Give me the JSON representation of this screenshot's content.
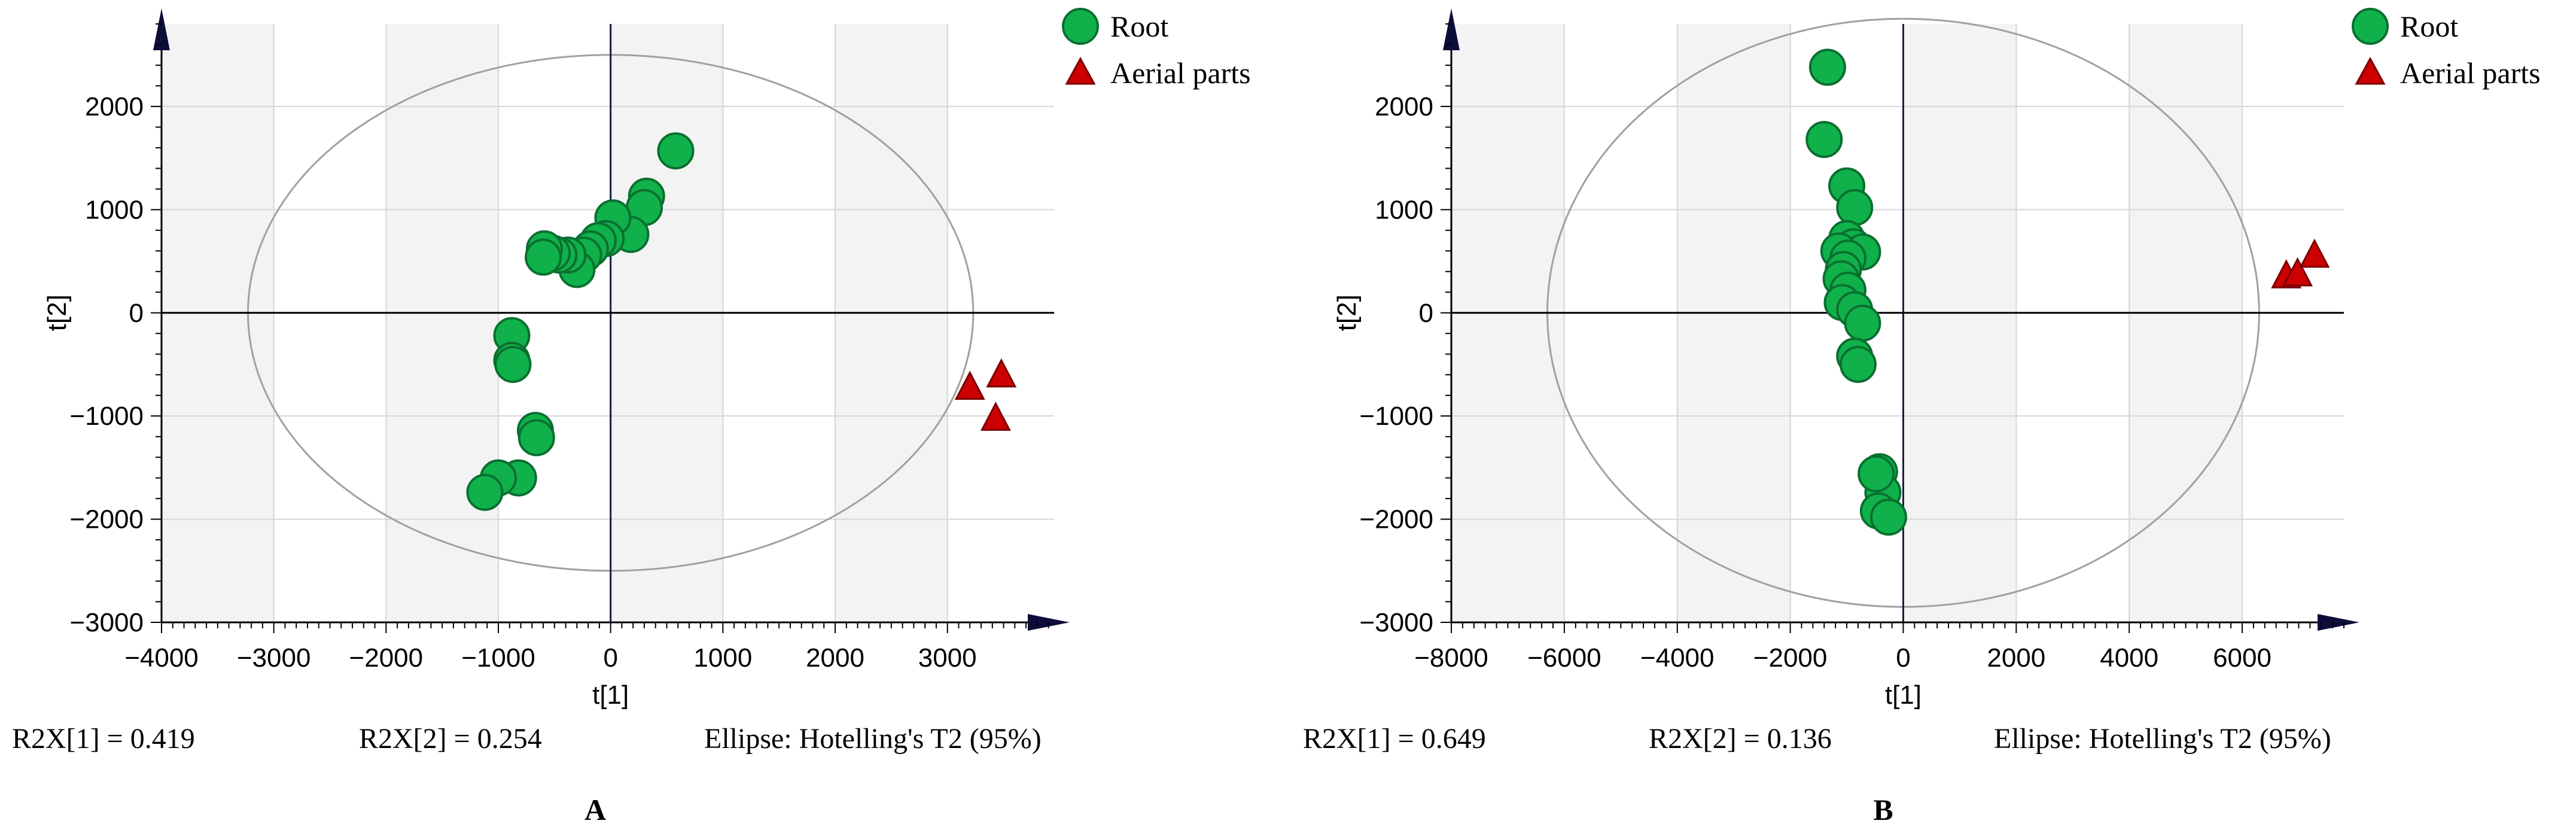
{
  "chart_data": [
    {
      "type": "scatter",
      "panel_label": "A",
      "xlabel": "t[1]",
      "ylabel": "t[2]",
      "xlim": [
        -4000,
        4000
      ],
      "ylim": [
        -3000,
        3000
      ],
      "xticks": [
        -4000,
        -3000,
        -2000,
        -1000,
        0,
        1000,
        2000,
        3000
      ],
      "yticks": [
        -3000,
        -2000,
        -1000,
        0,
        1000,
        2000
      ],
      "grid": true,
      "legend_position": "top-right, outside plot",
      "ellipse": {
        "label": "Ellipse: Hotelling's T2 (95%)",
        "rx": 3230,
        "ry": 2500,
        "color": "#a0a0a0"
      },
      "footer": {
        "r2x1": "R2X[1] = 0.419",
        "r2x2": "R2X[2] = 0.254",
        "ellipse_text": "Ellipse: Hotelling's T2 (95%)"
      },
      "series": [
        {
          "name": "Root",
          "marker": "circle",
          "color": "#10b14a",
          "edge": "#0a6f30",
          "points": [
            [
              580,
              1570
            ],
            [
              320,
              1130
            ],
            [
              300,
              1020
            ],
            [
              180,
              760
            ],
            [
              20,
              920
            ],
            [
              -40,
              720
            ],
            [
              -110,
              700
            ],
            [
              -180,
              620
            ],
            [
              -240,
              560
            ],
            [
              -300,
              420
            ],
            [
              -380,
              560
            ],
            [
              -460,
              560
            ],
            [
              -520,
              580
            ],
            [
              -590,
              620
            ],
            [
              -600,
              540
            ],
            [
              -880,
              -220
            ],
            [
              -880,
              -460
            ],
            [
              -870,
              -500
            ],
            [
              -670,
              -1140
            ],
            [
              -660,
              -1210
            ],
            [
              -820,
              -1600
            ],
            [
              -1000,
              -1600
            ],
            [
              -1120,
              -1740
            ]
          ]
        },
        {
          "name": "Aerial parts",
          "marker": "triangle",
          "color": "#cc0000",
          "edge": "#7a0000",
          "points": [
            [
              3200,
              -730
            ],
            [
              3480,
              -610
            ],
            [
              3430,
              -1030
            ]
          ]
        }
      ]
    },
    {
      "type": "scatter",
      "panel_label": "B",
      "xlabel": "t[1]",
      "ylabel": "t[2]",
      "xlim": [
        -8000,
        8000
      ],
      "ylim": [
        -3000,
        3000
      ],
      "xticks": [
        -8000,
        -6000,
        -4000,
        -2000,
        0,
        2000,
        4000,
        6000
      ],
      "yticks": [
        -3000,
        -2000,
        -1000,
        0,
        1000,
        2000
      ],
      "grid": true,
      "legend_position": "top-right, outside plot",
      "ellipse": {
        "label": "Ellipse: Hotelling's T2 (95%)",
        "rx": 6300,
        "ry": 2850,
        "color": "#a0a0a0"
      },
      "footer": {
        "r2x1": "R2X[1] = 0.649",
        "r2x2": "R2X[2] = 0.136",
        "ellipse_text": "Ellipse: Hotelling's T2 (95%)"
      },
      "series": [
        {
          "name": "Root",
          "marker": "circle",
          "color": "#10b14a",
          "edge": "#0a6f30",
          "points": [
            [
              -1340,
              2380
            ],
            [
              -1400,
              1680
            ],
            [
              -1000,
              1230
            ],
            [
              -860,
              1020
            ],
            [
              -1000,
              720
            ],
            [
              -880,
              640
            ],
            [
              -720,
              590
            ],
            [
              -1140,
              600
            ],
            [
              -980,
              530
            ],
            [
              -1060,
              420
            ],
            [
              -1100,
              330
            ],
            [
              -980,
              220
            ],
            [
              -1080,
              100
            ],
            [
              -860,
              30
            ],
            [
              -720,
              -100
            ],
            [
              -860,
              -420
            ],
            [
              -800,
              -500
            ],
            [
              -420,
              -1540
            ],
            [
              -360,
              -1740
            ],
            [
              -480,
              -1560
            ],
            [
              -440,
              -1920
            ],
            [
              -260,
              -1980
            ]
          ]
        },
        {
          "name": "Aerial parts",
          "marker": "triangle",
          "color": "#cc0000",
          "edge": "#7a0000",
          "points": [
            [
              6780,
              350
            ],
            [
              6980,
              370
            ],
            [
              7280,
              550
            ]
          ]
        }
      ]
    }
  ]
}
